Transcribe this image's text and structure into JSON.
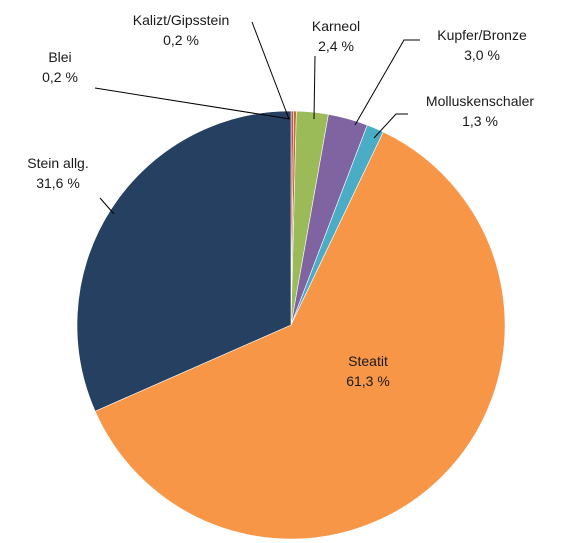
{
  "chart_data": {
    "type": "pie",
    "title": "",
    "legend": "none",
    "slices": [
      {
        "label": "Blei",
        "value_text": "0,2 %",
        "value": 0.2,
        "color": "#c0504d"
      },
      {
        "label": "Kalizt/Gipsstein",
        "value_text": "0,2 %",
        "value": 0.2,
        "color": "#c06b2a"
      },
      {
        "label": "Karneol",
        "value_text": "2,4 %",
        "value": 2.4,
        "color": "#9bbb59"
      },
      {
        "label": "Kupfer/Bronze",
        "value_text": "3,0 %",
        "value": 3.0,
        "color": "#8064a2"
      },
      {
        "label": "Molluskenschaler",
        "value_text": "1,3 %",
        "value": 1.3,
        "color": "#4bacc6"
      },
      {
        "label": "Steatit",
        "value_text": "61,3 %",
        "value": 61.3,
        "color": "#f79646"
      },
      {
        "label": "Stein allg.",
        "value_text": "31,6 %",
        "value": 31.6,
        "color": "#254061"
      }
    ]
  }
}
